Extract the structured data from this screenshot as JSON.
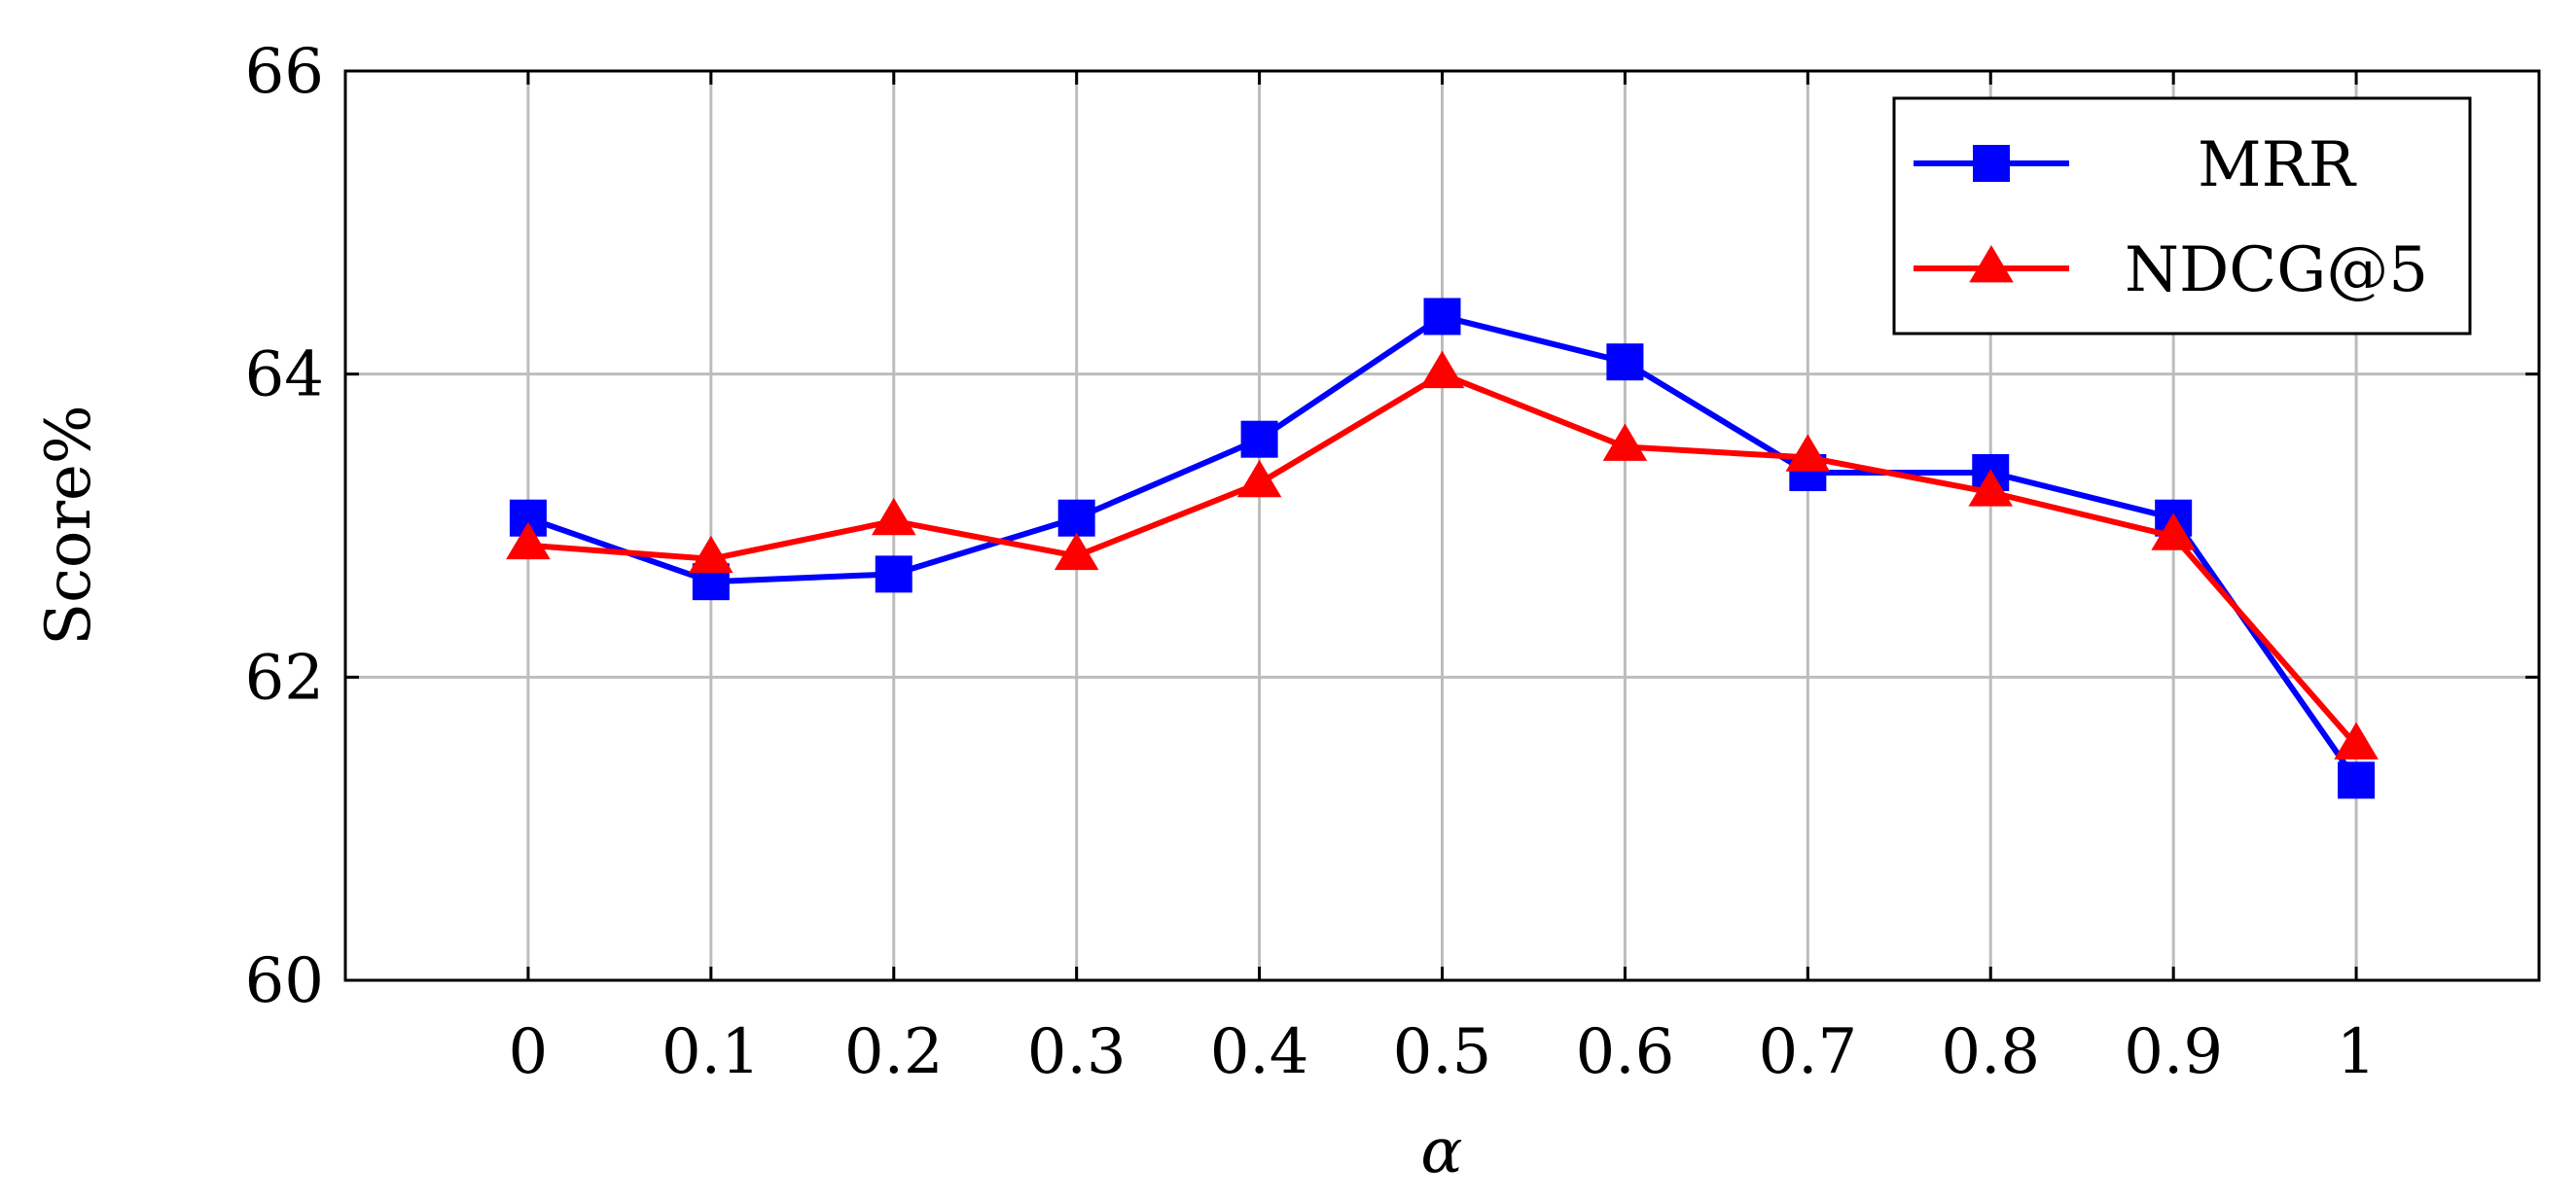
{
  "chart_data": {
    "type": "line",
    "title": "",
    "xlabel": "α",
    "ylabel": "Score%",
    "x": [
      0,
      0.1,
      0.2,
      0.3,
      0.4,
      0.5,
      0.6,
      0.7,
      0.8,
      0.9,
      1
    ],
    "x_tick_labels": [
      "0",
      "0.1",
      "0.2",
      "0.3",
      "0.4",
      "0.5",
      "0.6",
      "0.7",
      "0.8",
      "0.9",
      "1"
    ],
    "xlim": [
      -0.1,
      1.1
    ],
    "ylim": [
      60,
      66
    ],
    "y_ticks": [
      60,
      62,
      64,
      66
    ],
    "y_tick_labels": [
      "60",
      "62",
      "64",
      "66"
    ],
    "grid": true,
    "legend_position": "top-right",
    "series": [
      {
        "name": "MRR",
        "color": "#0000ff",
        "marker": "square",
        "values": [
          63.05,
          62.63,
          62.68,
          63.05,
          63.57,
          64.38,
          64.08,
          63.35,
          63.35,
          63.05,
          61.32
        ]
      },
      {
        "name": "NDCG@5",
        "color": "#ff0000",
        "marker": "triangle",
        "values": [
          62.87,
          62.78,
          63.03,
          62.8,
          63.28,
          64.0,
          63.52,
          63.45,
          63.22,
          62.93,
          61.55
        ]
      }
    ]
  }
}
